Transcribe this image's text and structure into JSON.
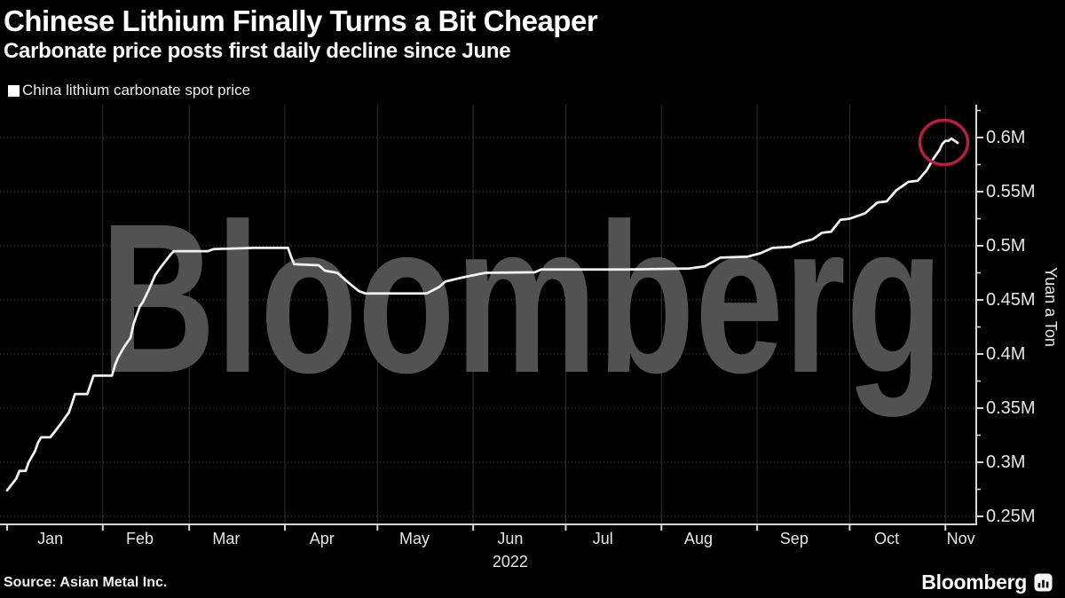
{
  "header": {
    "title": "Chinese Lithium Finally Turns a Bit Cheaper",
    "subtitle": "Carbonate price posts first daily decline since June"
  },
  "legend": {
    "label": "China lithium carbonate spot price",
    "marker_color": "#ffffff"
  },
  "watermark": "Bloomberg",
  "footer": {
    "source": "Source: Asian Metal Inc.",
    "brand": "Bloomberg",
    "brand_icon": "bar-chart-badge-icon"
  },
  "colors": {
    "background": "#000000",
    "line": "#f2f2f2",
    "axis": "#d6d6d6",
    "grid_vertical": "#2f2f2f",
    "grid_horizontal": "#4d4d4d",
    "watermark": "#525252",
    "annotation": "#b91c44",
    "text_axis": "#e6e6e6"
  },
  "chart_data": {
    "type": "line",
    "title": "China lithium carbonate spot price",
    "ylabel": "Yuan a Ton",
    "x_unit": "days since Jan 1, 2022",
    "x_label_year": "2022",
    "year_label_month": "Jun",
    "ylim": [
      0.246,
      0.63
    ],
    "grid": "both",
    "legend_position": "top-left",
    "yticks": [
      {
        "value": 0.25,
        "label": "0.25M"
      },
      {
        "value": 0.3,
        "label": "0.3M"
      },
      {
        "value": 0.35,
        "label": "0.35M"
      },
      {
        "value": 0.4,
        "label": "0.4M"
      },
      {
        "value": 0.45,
        "label": "0.45M"
      },
      {
        "value": 0.5,
        "label": "0.5M"
      },
      {
        "value": 0.55,
        "label": "0.55M"
      },
      {
        "value": 0.6,
        "label": "0.6M"
      }
    ],
    "yticks_minor": [
      0.275,
      0.325,
      0.375,
      0.425,
      0.475,
      0.525,
      0.575,
      0.625
    ],
    "x_months": [
      {
        "label": "Jan",
        "start_day": 0,
        "label_day": 14
      },
      {
        "label": "Feb",
        "start_day": 31,
        "label_day": 43
      },
      {
        "label": "Mar",
        "start_day": 59,
        "label_day": 71
      },
      {
        "label": "Apr",
        "start_day": 90,
        "label_day": 102
      },
      {
        "label": "May",
        "start_day": 120,
        "label_day": 132
      },
      {
        "label": "Jun",
        "start_day": 151,
        "label_day": 163
      },
      {
        "label": "Jul",
        "start_day": 181,
        "label_day": 193
      },
      {
        "label": "Aug",
        "start_day": 212,
        "label_day": 224
      },
      {
        "label": "Sep",
        "start_day": 243,
        "label_day": 255
      },
      {
        "label": "Oct",
        "start_day": 273,
        "label_day": 285
      },
      {
        "label": "Nov",
        "start_day": 304,
        "label_day": 309
      }
    ],
    "x_total_days": 314,
    "series": [
      {
        "name": "China lithium carbonate spot price",
        "color": "#f2f2f2",
        "points": [
          [
            0,
            0.274
          ],
          [
            3,
            0.285
          ],
          [
            4,
            0.292
          ],
          [
            6,
            0.292
          ],
          [
            7,
            0.3
          ],
          [
            9,
            0.31
          ],
          [
            10,
            0.318
          ],
          [
            11,
            0.323
          ],
          [
            14,
            0.323
          ],
          [
            17,
            0.334
          ],
          [
            20,
            0.346
          ],
          [
            21,
            0.354
          ],
          [
            22,
            0.363
          ],
          [
            26,
            0.363
          ],
          [
            28,
            0.38
          ],
          [
            34,
            0.38
          ],
          [
            35,
            0.39
          ],
          [
            36,
            0.397
          ],
          [
            38,
            0.407
          ],
          [
            40,
            0.415
          ],
          [
            41,
            0.428
          ],
          [
            43,
            0.444
          ],
          [
            44,
            0.448
          ],
          [
            46,
            0.46
          ],
          [
            48,
            0.473
          ],
          [
            50,
            0.481
          ],
          [
            53,
            0.492
          ],
          [
            54,
            0.495
          ],
          [
            65,
            0.495
          ],
          [
            67,
            0.497
          ],
          [
            80,
            0.498
          ],
          [
            91,
            0.498
          ],
          [
            92,
            0.49
          ],
          [
            93,
            0.483
          ],
          [
            101,
            0.482
          ],
          [
            103,
            0.477
          ],
          [
            107,
            0.475
          ],
          [
            111,
            0.465
          ],
          [
            114,
            0.458
          ],
          [
            116,
            0.456
          ],
          [
            136,
            0.456
          ],
          [
            140,
            0.462
          ],
          [
            142,
            0.467
          ],
          [
            145,
            0.469
          ],
          [
            148,
            0.471
          ],
          [
            155,
            0.475
          ],
          [
            171,
            0.4755
          ],
          [
            173,
            0.478
          ],
          [
            200,
            0.478
          ],
          [
            221,
            0.479
          ],
          [
            226,
            0.481
          ],
          [
            231,
            0.489
          ],
          [
            240,
            0.49
          ],
          [
            244,
            0.493
          ],
          [
            248,
            0.498
          ],
          [
            254,
            0.499
          ],
          [
            257,
            0.503
          ],
          [
            261,
            0.506
          ],
          [
            264,
            0.512
          ],
          [
            267,
            0.513
          ],
          [
            270,
            0.524
          ],
          [
            273,
            0.525
          ],
          [
            278,
            0.53
          ],
          [
            282,
            0.54
          ],
          [
            285,
            0.541
          ],
          [
            288,
            0.551
          ],
          [
            292,
            0.559
          ],
          [
            295,
            0.56
          ],
          [
            298,
            0.57
          ],
          [
            300,
            0.58
          ],
          [
            302,
            0.588
          ],
          [
            303,
            0.594
          ],
          [
            304,
            0.597
          ],
          [
            305,
            0.597
          ],
          [
            306,
            0.599
          ],
          [
            308,
            0.595
          ]
        ]
      }
    ],
    "annotation": {
      "type": "circle-highlight",
      "center_day": 303.5,
      "center_value": 0.5955,
      "radius_x_px": 27,
      "radius_y_px": 25,
      "color": "#b91c44"
    }
  }
}
